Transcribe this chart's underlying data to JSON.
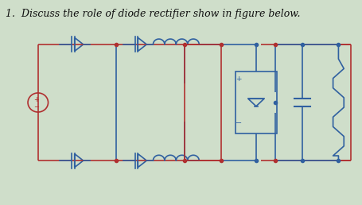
{
  "title": "1.  Discuss the role of diode rectifier show in figure below.",
  "bg_color": "#cfdeca",
  "line_color_red": "#b03030",
  "line_color_blue": "#3060a0",
  "title_fontsize": 9,
  "fig_width": 4.55,
  "fig_height": 2.58,
  "dpi": 100
}
